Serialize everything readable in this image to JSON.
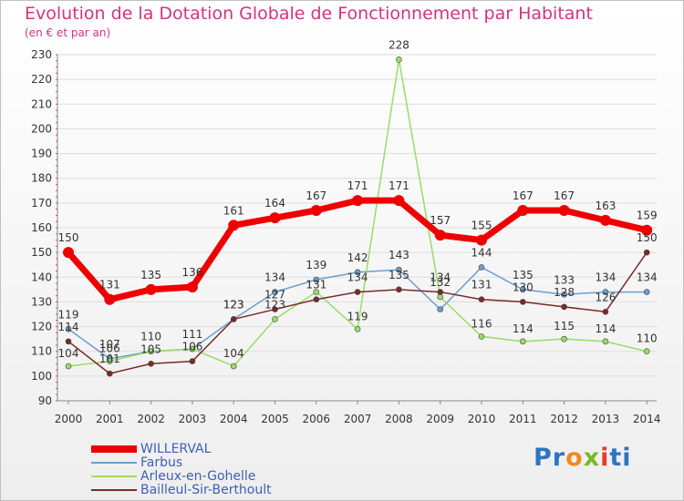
{
  "title": "Evolution de la Dotation Globale de Fonctionnement par Habitant",
  "subtitle": "(en € et par an)",
  "logo": {
    "letters": [
      "P",
      "r",
      "o",
      "x",
      "i",
      "t",
      "i"
    ],
    "colors": [
      "#2d76c2",
      "#2d76c2",
      "#f08a1a",
      "#7ab929",
      "#e53b2f",
      "#2d76c2",
      "#2d76c2"
    ]
  },
  "chart_data": {
    "type": "line",
    "categories": [
      "2000",
      "2001",
      "2002",
      "2003",
      "2004",
      "2005",
      "2006",
      "2007",
      "2008",
      "2009",
      "2010",
      "2011",
      "2012",
      "2013",
      "2014"
    ],
    "ylim": [
      90,
      230
    ],
    "yticks": [
      90,
      100,
      110,
      120,
      130,
      140,
      150,
      160,
      170,
      180,
      190,
      200,
      210,
      220,
      230
    ],
    "grid": true,
    "legend_position": "bottom-left",
    "series": [
      {
        "name": "WILLERVAL",
        "color": "#ee0000",
        "width": 7,
        "values": [
          150,
          131,
          135,
          136,
          161,
          164,
          167,
          171,
          171,
          157,
          155,
          167,
          167,
          163,
          159
        ],
        "labels": [
          "150",
          "131",
          "135",
          "136",
          "161",
          "164",
          "167",
          "171",
          "171",
          "157",
          "155",
          "167",
          "167",
          "163",
          "159"
        ]
      },
      {
        "name": "Farbus",
        "color": "#6a9fd0",
        "width": 1.5,
        "values": [
          119,
          107,
          110,
          111,
          123,
          134,
          139,
          142,
          143,
          127,
          144,
          135,
          133,
          134,
          134
        ],
        "labels": [
          "119",
          "107",
          "110",
          "111",
          "123",
          "134",
          "139",
          "142",
          "143",
          "",
          "144",
          "135",
          "133",
          "134",
          "134"
        ]
      },
      {
        "name": "Arleux-en-Gohelle",
        "color": "#99dd66",
        "width": 1.5,
        "values": [
          104,
          106,
          110,
          111,
          104,
          123,
          134,
          119,
          228,
          132,
          116,
          114,
          115,
          114,
          110
        ],
        "labels": [
          "104",
          "106",
          "",
          "",
          "104",
          "123",
          "",
          "119",
          "228",
          "132",
          "116",
          "114",
          "115",
          "114",
          "110"
        ]
      },
      {
        "name": "Bailleul-Sir-Berthoult",
        "color": "#7a2a2a",
        "width": 1.5,
        "values": [
          114,
          101,
          105,
          106,
          123,
          127,
          131,
          134,
          135,
          134,
          131,
          130,
          128,
          126,
          150
        ],
        "labels": [
          "114",
          "101",
          "105",
          "106",
          "123",
          "127",
          "131",
          "134",
          "135",
          "134",
          "131",
          "130",
          "128",
          "126",
          "150"
        ]
      }
    ]
  }
}
